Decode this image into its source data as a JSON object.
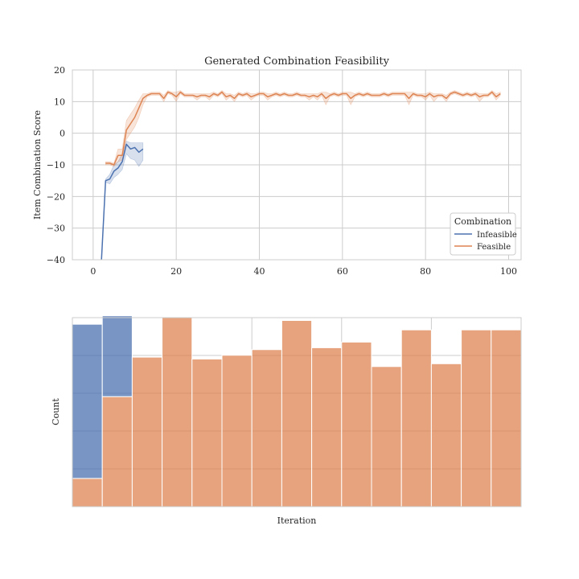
{
  "colors": {
    "infeasible": "#4C72B0",
    "feasible": "#DD8452",
    "grid": "#cccccc",
    "frame": "#cccccc"
  },
  "chart_data": [
    {
      "type": "line",
      "title": "Generated Combination Feasibility",
      "xlabel": "",
      "ylabel": "Item Combination Score",
      "xlim": [
        -5,
        103
      ],
      "ylim": [
        -40,
        20
      ],
      "xticks": [
        0,
        20,
        40,
        60,
        80,
        100
      ],
      "yticks": [
        20,
        10,
        0,
        -10,
        -20,
        -30,
        -40
      ],
      "xtick_labels": [
        "0",
        "20",
        "40",
        "60",
        "80",
        "100"
      ],
      "ytick_labels": [
        "20",
        "10",
        "0",
        "−10",
        "−20",
        "−30",
        "−40"
      ],
      "grid": true,
      "legend": {
        "title": "Combination",
        "position": "lower-right"
      },
      "series": [
        {
          "name": "Infeasible",
          "color_key": "infeasible",
          "x": [
            2,
            3,
            4,
            5,
            6,
            7,
            8,
            9,
            10,
            11,
            12
          ],
          "y": [
            -40,
            -15,
            -14.5,
            -12,
            -11,
            -9,
            -3.5,
            -5,
            -4.5,
            -6,
            -5
          ],
          "y_low": [
            -40,
            -15.5,
            -16,
            -14,
            -13,
            -11.5,
            -6.5,
            -8,
            -8.5,
            -10.5,
            -8.5
          ],
          "y_high": [
            -40,
            -14.5,
            -13,
            -10,
            -9,
            -6.5,
            -2.5,
            -3,
            -3,
            -3,
            -3
          ]
        },
        {
          "name": "Feasible",
          "color_key": "feasible",
          "x": [
            3,
            4,
            5,
            6,
            7,
            8,
            9,
            10,
            11,
            12,
            13,
            14,
            15,
            16,
            17,
            18,
            19,
            20,
            21,
            22,
            23,
            24,
            25,
            26,
            27,
            28,
            29,
            30,
            31,
            32,
            33,
            34,
            35,
            36,
            37,
            38,
            39,
            40,
            41,
            42,
            43,
            44,
            45,
            46,
            47,
            48,
            49,
            50,
            51,
            52,
            53,
            54,
            55,
            56,
            57,
            58,
            59,
            60,
            61,
            62,
            63,
            64,
            65,
            66,
            67,
            68,
            69,
            70,
            71,
            72,
            73,
            74,
            75,
            76,
            77,
            78,
            79,
            80,
            81,
            82,
            83,
            84,
            85,
            86,
            87,
            88,
            89,
            90,
            91,
            92,
            93,
            94,
            95,
            96,
            97,
            98
          ],
          "y": [
            -9.5,
            -9.5,
            -10,
            -7,
            -7,
            1,
            3,
            5,
            8,
            11,
            12,
            12.5,
            12.5,
            12.5,
            11,
            13,
            12.5,
            11.5,
            13,
            12,
            12,
            12,
            11.5,
            12,
            12,
            11.5,
            12.5,
            12,
            13,
            11.5,
            12,
            11,
            12.5,
            12,
            12.5,
            11.5,
            12,
            12.5,
            12.5,
            11.5,
            12,
            12.5,
            12,
            12.5,
            12,
            12,
            12.5,
            12,
            12,
            11.5,
            12,
            11.5,
            12.5,
            11,
            12,
            12.5,
            12,
            12.5,
            12.5,
            11,
            12,
            12.5,
            12,
            12.5,
            12,
            12,
            12,
            12.5,
            12,
            12.5,
            12.5,
            12.5,
            12.5,
            11,
            12.5,
            12,
            12,
            11.5,
            12.5,
            11.5,
            12,
            12,
            11,
            12.5,
            13,
            12.5,
            12,
            12.5,
            12,
            12.5,
            11.5,
            12,
            12,
            13,
            11.5,
            12.5
          ],
          "y_low": [
            -10,
            -10,
            -10.5,
            -9,
            -8.5,
            -2,
            0,
            2,
            5,
            9,
            11.5,
            12,
            12,
            12,
            10,
            12.5,
            12,
            10,
            12.5,
            11.5,
            11.5,
            11.5,
            10.5,
            11.5,
            11.5,
            10.5,
            12,
            11.5,
            12.5,
            10.5,
            11.5,
            10,
            12,
            11.5,
            12,
            10.5,
            11.5,
            12,
            12,
            10.5,
            11.5,
            12,
            11.5,
            12,
            11.5,
            11.5,
            12,
            11.5,
            11.5,
            10.5,
            11.5,
            10.5,
            12,
            9,
            11.5,
            12,
            11.5,
            12,
            12,
            9,
            11.5,
            12,
            11.5,
            12,
            11.5,
            11.5,
            11.5,
            12,
            11.5,
            12,
            12,
            12,
            12,
            9,
            12,
            11.5,
            11.5,
            10.5,
            12,
            10,
            11.5,
            11.5,
            10,
            12,
            12.5,
            12,
            11.5,
            12,
            11.5,
            12,
            10,
            11.5,
            11.5,
            12.5,
            10.5,
            12
          ],
          "y_high": [
            -9,
            -9,
            -9.5,
            -5,
            -5,
            4,
            6,
            8,
            10.5,
            12.5,
            12.5,
            13,
            13,
            13,
            12,
            13.5,
            13,
            13,
            13.5,
            12.5,
            12.5,
            12.5,
            12.5,
            12.5,
            12.5,
            12.5,
            13,
            12.5,
            13.5,
            12.5,
            12.5,
            12,
            13,
            12.5,
            13,
            12.5,
            12.5,
            13,
            13,
            12.5,
            12.5,
            13,
            12.5,
            13,
            12.5,
            12.5,
            13,
            12.5,
            12.5,
            12.5,
            12.5,
            12.5,
            13,
            13,
            12.5,
            13,
            12.5,
            13,
            13,
            13,
            12.5,
            13,
            12.5,
            13,
            12.5,
            12.5,
            12.5,
            13,
            12.5,
            13,
            13,
            13,
            13,
            13,
            13,
            12.5,
            12.5,
            12.5,
            13,
            12.5,
            12.5,
            12.5,
            12,
            13,
            13.5,
            13,
            12.5,
            13,
            12.5,
            13,
            12.5,
            12.5,
            12.5,
            13.5,
            12.5,
            13
          ]
        }
      ]
    },
    {
      "type": "bar",
      "title": "",
      "xlabel": "Iteration",
      "ylabel": "Count",
      "stacked": true,
      "bins": 15,
      "series": [
        {
          "name": "Infeasible",
          "color_key": "infeasible",
          "values": [
            0.82,
            0.43,
            0,
            0,
            0,
            0,
            0,
            0,
            0,
            0,
            0,
            0,
            0,
            0,
            0
          ]
        },
        {
          "name": "Feasible",
          "color_key": "feasible",
          "values": [
            0.15,
            0.585,
            0.795,
            1.005,
            0.785,
            0.805,
            0.835,
            0.99,
            0.845,
            0.875,
            0.745,
            0.94,
            0.76,
            0.94,
            0.94
          ]
        }
      ],
      "ymax": 1.005,
      "grid": true
    }
  ]
}
